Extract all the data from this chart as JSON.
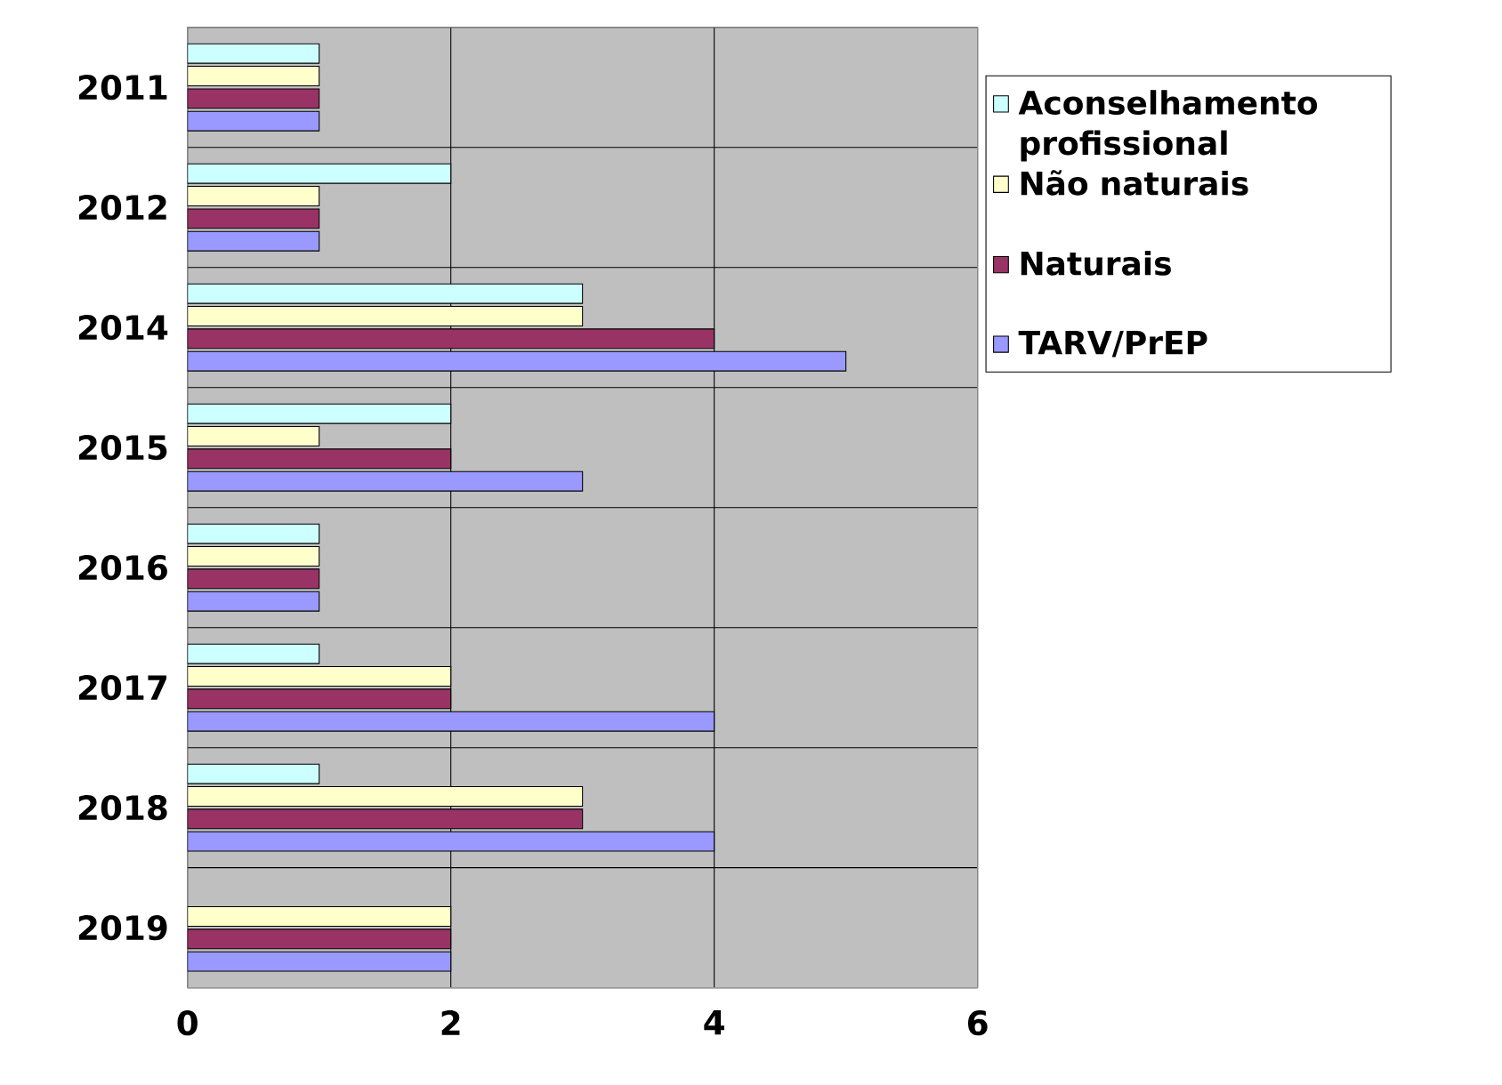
{
  "chart_data": {
    "type": "bar",
    "orientation": "horizontal",
    "categories": [
      "2011",
      "2012",
      "2014",
      "2015",
      "2016",
      "2017",
      "2018",
      "2019"
    ],
    "series": [
      {
        "name": "Aconselhamento profissional",
        "color": "#ccffff",
        "values": [
          1,
          2,
          3,
          2,
          1,
          1,
          1,
          null
        ]
      },
      {
        "name": "Não naturais",
        "color": "#ffffcc",
        "values": [
          1,
          1,
          3,
          1,
          1,
          2,
          3,
          2
        ]
      },
      {
        "name": "Naturais",
        "color": "#993366",
        "values": [
          1,
          1,
          4,
          2,
          1,
          2,
          3,
          2
        ]
      },
      {
        "name": "TARV/PrEP",
        "color": "#9999ff",
        "values": [
          1,
          1,
          5,
          3,
          1,
          4,
          4,
          2
        ]
      }
    ],
    "xlim": [
      0,
      6
    ],
    "xticks": [
      0,
      2,
      4,
      6
    ],
    "grid": true,
    "legend": "right"
  }
}
